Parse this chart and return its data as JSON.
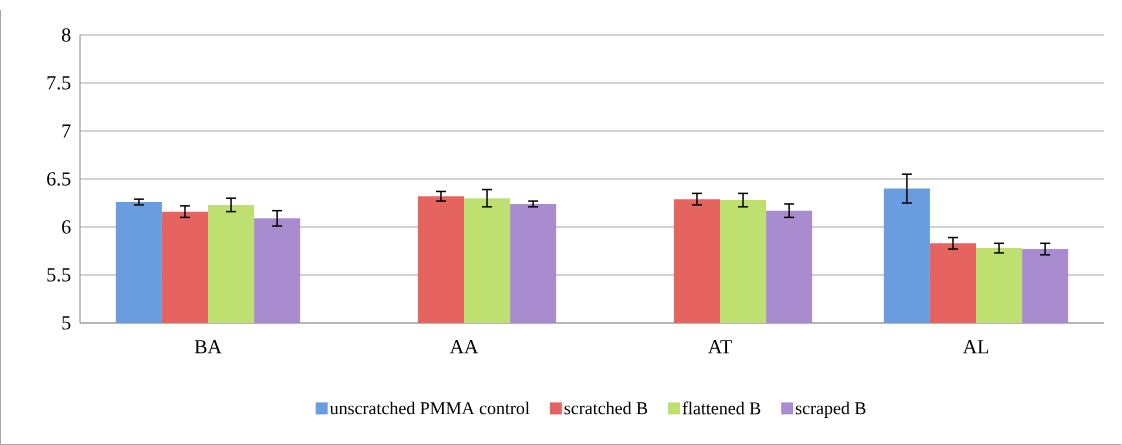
{
  "chart_data": {
    "type": "bar",
    "categories": [
      "BA",
      "AA",
      "AT",
      "AL"
    ],
    "series": [
      {
        "name": "unscratched PMMA control",
        "color": "#6a9de0",
        "values": [
          6.26,
          null,
          null,
          6.4
        ],
        "errors": [
          0.03,
          null,
          null,
          0.15
        ]
      },
      {
        "name": "scratched B",
        "color": "#e66460",
        "values": [
          6.16,
          6.32,
          6.29,
          5.83
        ],
        "errors": [
          0.06,
          0.05,
          0.06,
          0.06
        ]
      },
      {
        "name": "flattened B",
        "color": "#bee070",
        "values": [
          6.23,
          6.3,
          6.28,
          5.78
        ],
        "errors": [
          0.07,
          0.09,
          0.07,
          0.05
        ]
      },
      {
        "name": "scraped B",
        "color": "#a88ccf",
        "values": [
          6.09,
          6.24,
          6.17,
          5.77
        ],
        "errors": [
          0.08,
          0.03,
          0.07,
          0.06
        ]
      }
    ],
    "ylim": [
      5,
      8
    ],
    "yticks": [
      5,
      5.5,
      6,
      6.5,
      7,
      7.5,
      8
    ],
    "grid": "y",
    "legend": "bottom"
  }
}
